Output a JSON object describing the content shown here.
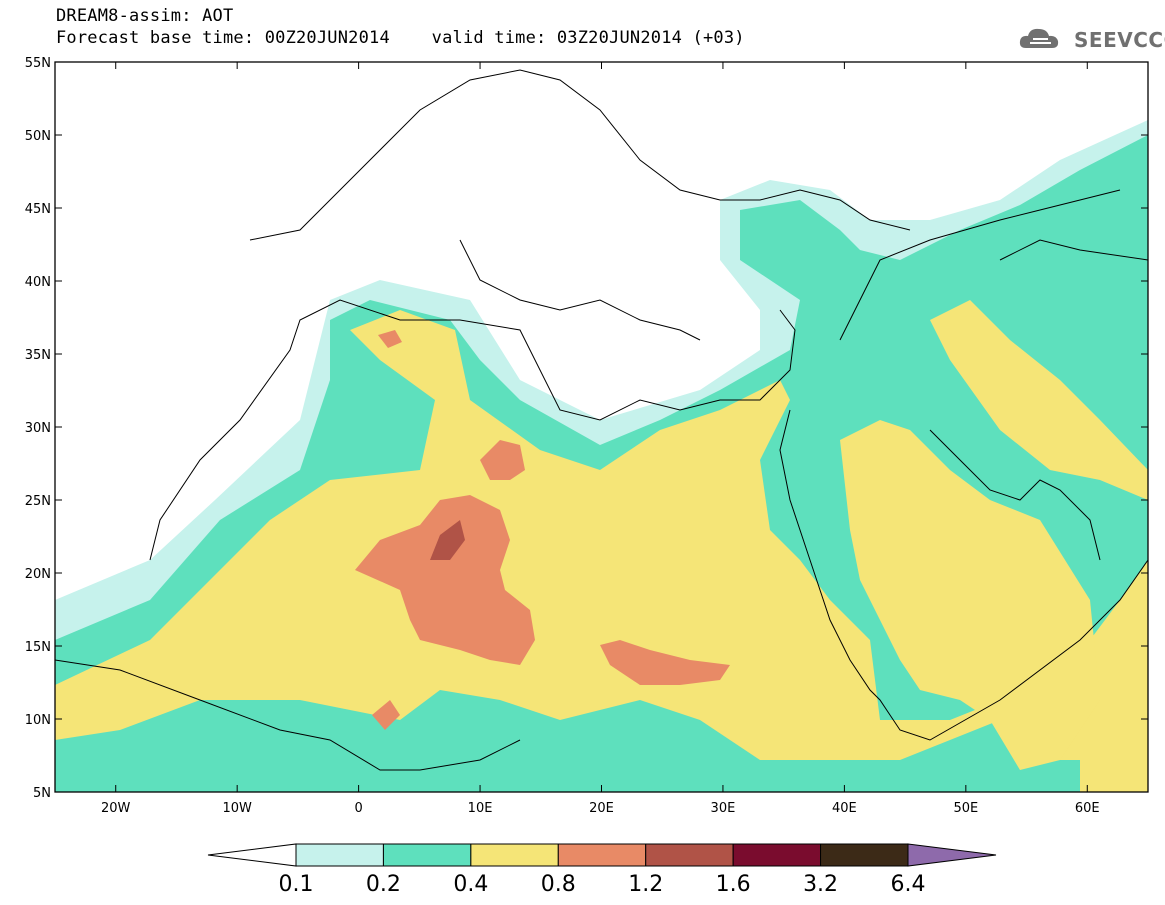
{
  "header": {
    "title_line1": "DREAM8-assim: AOT",
    "title_line2": "Forecast base time: 00Z20JUN2014    valid time: 03Z20JUN2014 (+03)",
    "logo_text": "SEEVCCC",
    "logo_icon": "cloud-icon"
  },
  "map": {
    "lon_range": [
      -25,
      65
    ],
    "lat_range": [
      5,
      55
    ],
    "lat_labels": [
      "55N",
      "50N",
      "45N",
      "40N",
      "35N",
      "30N",
      "25N",
      "20N",
      "15N",
      "10N",
      "5N"
    ],
    "lon_labels": [
      "20W",
      "10W",
      "0",
      "10E",
      "20E",
      "30E",
      "40E",
      "50E",
      "60E"
    ],
    "field": "AOT",
    "shading_colors": {
      "0.1-0.2": "#c6f2ec",
      "0.2-0.4": "#5ee0bd",
      "0.4-0.8": "#f5e577",
      "0.8-1.2": "#e88a66",
      "1.2-1.6": "#b05347"
    }
  },
  "colorbar": {
    "labels": [
      "0.1",
      "0.2",
      "0.4",
      "0.8",
      "1.2",
      "1.6",
      "3.2",
      "6.4"
    ],
    "colors": [
      "#ffffff",
      "#c6f2ec",
      "#5ee0bd",
      "#f5e577",
      "#e88a66",
      "#b05347",
      "#7a0c2e",
      "#3c2a17",
      "#8e6aab"
    ]
  }
}
